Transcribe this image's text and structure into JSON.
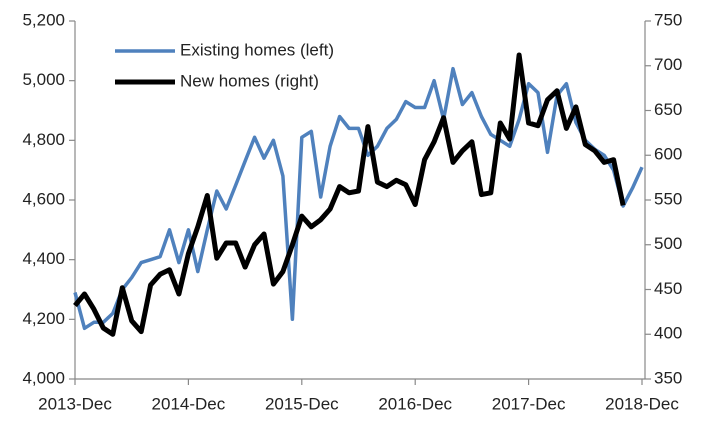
{
  "chart_data": {
    "type": "line",
    "categories": [
      "2013-Dec",
      null,
      null,
      null,
      null,
      null,
      null,
      null,
      null,
      null,
      null,
      null,
      "2014-Dec",
      null,
      null,
      null,
      null,
      null,
      null,
      null,
      null,
      null,
      null,
      null,
      "2015-Dec",
      null,
      null,
      null,
      null,
      null,
      null,
      null,
      null,
      null,
      null,
      null,
      "2016-Dec",
      null,
      null,
      null,
      null,
      null,
      null,
      null,
      null,
      null,
      null,
      null,
      "2017-Dec",
      null,
      null,
      null,
      null,
      null,
      null,
      null,
      null,
      null,
      null,
      null,
      "2018-Dec"
    ],
    "series": [
      {
        "name": "Existing homes (left)",
        "color": "#4f81bd",
        "axis": "y",
        "values": [
          4290,
          4170,
          4190,
          4190,
          4220,
          4300,
          4340,
          4390,
          4400,
          4410,
          4500,
          4390,
          4500,
          4360,
          4500,
          4630,
          4570,
          4650,
          4730,
          4810,
          4740,
          4800,
          4680,
          4200,
          4810,
          4830,
          4610,
          4780,
          4880,
          4840,
          4840,
          4750,
          4780,
          4840,
          4870,
          4930,
          4910,
          4910,
          5000,
          4870,
          5040,
          4920,
          4960,
          4880,
          4820,
          4800,
          4780,
          4870,
          4990,
          4960,
          4760,
          4950,
          4990,
          4860,
          4800,
          4770,
          4750,
          4700,
          4580,
          4640,
          4710
        ]
      },
      {
        "name": "New homes (right)",
        "color": "#000000",
        "axis": "y2",
        "values": [
          432,
          445,
          428,
          407,
          400,
          452,
          415,
          403,
          455,
          467,
          472,
          445,
          490,
          520,
          555,
          485,
          502,
          502,
          475,
          500,
          512,
          456,
          470,
          500,
          532,
          520,
          528,
          540,
          565,
          558,
          560,
          632,
          570,
          565,
          572,
          567,
          545,
          595,
          615,
          642,
          592,
          605,
          615,
          556,
          558,
          636,
          618,
          712,
          636,
          633,
          662,
          672,
          630,
          654,
          612,
          605,
          592,
          595,
          544,
          null,
          null
        ]
      }
    ],
    "ylim": [
      4000,
      5200
    ],
    "yticks": [
      {
        "value": 4000,
        "label": "4,000"
      },
      {
        "value": 4200,
        "label": "4,200"
      },
      {
        "value": 4400,
        "label": "4,400"
      },
      {
        "value": 4600,
        "label": "4,600"
      },
      {
        "value": 4800,
        "label": "4,800"
      },
      {
        "value": 5000,
        "label": "5,000"
      },
      {
        "value": 5200,
        "label": "5,200"
      }
    ],
    "y2lim": [
      350,
      750
    ],
    "y2ticks": [
      350,
      400,
      450,
      500,
      550,
      600,
      650,
      700,
      750
    ],
    "legend": "upper left"
  }
}
